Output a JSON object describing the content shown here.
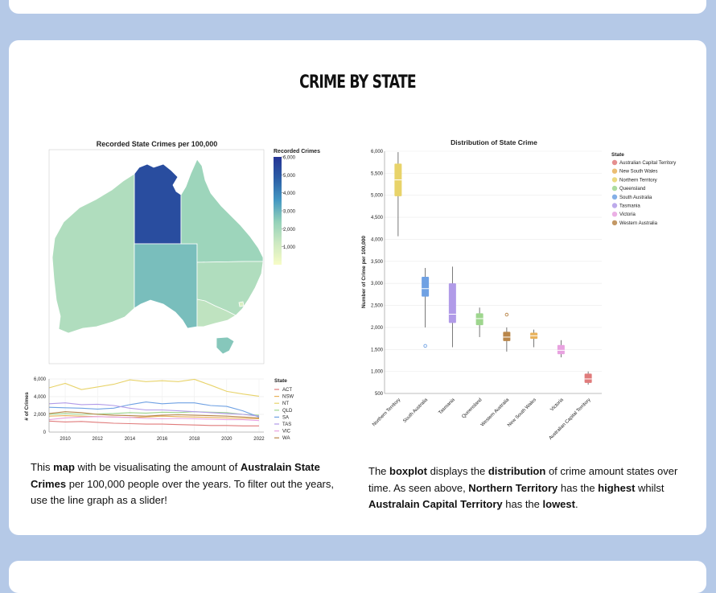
{
  "page": {
    "title": "CRIME BY STATE"
  },
  "map": {
    "title": "Recorded State Crimes per 100,000",
    "legend_title": "Recorded Crimes",
    "legend_ticks": [
      "6,000",
      "5,000",
      "4,000",
      "3,000",
      "2,000",
      "1,000"
    ],
    "color_scale": [
      "#f7fcc6",
      "#cde9c2",
      "#93d1b9",
      "#4497c2",
      "#2c5ea6",
      "#253494"
    ],
    "states": [
      {
        "name": "NT",
        "value": 5300
      },
      {
        "name": "WA",
        "value": 1800
      },
      {
        "name": "SA",
        "value": 2800
      },
      {
        "name": "QLD",
        "value": 2200
      },
      {
        "name": "NSW",
        "value": 1800
      },
      {
        "name": "VIC",
        "value": 1500
      },
      {
        "name": "TAS",
        "value": 2600
      },
      {
        "name": "ACT",
        "value": 850
      }
    ]
  },
  "chart_data": [
    {
      "type": "line",
      "title": "",
      "xlabel": "",
      "ylabel": "# of Crimes",
      "ylim": [
        0,
        6000
      ],
      "x_ticks": [
        "2010",
        "2012",
        "2014",
        "2016",
        "2018",
        "2020",
        "2022"
      ],
      "y_ticks": [
        "0",
        "2,000",
        "4,000",
        "6,000"
      ],
      "legend_title": "State",
      "x": [
        2009,
        2010,
        2011,
        2012,
        2013,
        2014,
        2015,
        2016,
        2017,
        2018,
        2019,
        2020,
        2021,
        2022
      ],
      "series": [
        {
          "name": "ACT",
          "color": "#e07b7b",
          "values": [
            1250,
            1150,
            1200,
            1100,
            1000,
            950,
            900,
            900,
            850,
            800,
            750,
            750,
            700,
            700
          ]
        },
        {
          "name": "NSW",
          "color": "#e8b15a",
          "values": [
            1800,
            1850,
            1800,
            1750,
            1700,
            1650,
            1700,
            1800,
            1750,
            1700,
            1650,
            1600,
            1550,
            1500
          ]
        },
        {
          "name": "NT",
          "color": "#e8d36a",
          "values": [
            5000,
            5500,
            4800,
            5100,
            5400,
            5900,
            5700,
            5800,
            5700,
            5950,
            5300,
            4600,
            4300,
            4050
          ]
        },
        {
          "name": "QLD",
          "color": "#9ed68e",
          "values": [
            2000,
            2100,
            2000,
            2050,
            2100,
            2200,
            2150,
            2250,
            2200,
            2300,
            2250,
            2200,
            2000,
            1900
          ]
        },
        {
          "name": "SA",
          "color": "#6fa1e3",
          "values": [
            2800,
            2750,
            2700,
            2600,
            2700,
            3100,
            3400,
            3200,
            3300,
            3300,
            3000,
            2900,
            2400,
            1700
          ]
        },
        {
          "name": "TAS",
          "color": "#b19be8",
          "values": [
            3200,
            3300,
            3100,
            3150,
            3000,
            2700,
            2500,
            2500,
            2400,
            2300,
            2200,
            2100,
            2000,
            1800
          ]
        },
        {
          "name": "VIC",
          "color": "#e8a2e0",
          "values": [
            1400,
            1600,
            1700,
            1750,
            1700,
            1650,
            1550,
            1500,
            1550,
            1500,
            1450,
            1400,
            1400,
            1300
          ]
        },
        {
          "name": "WA",
          "color": "#b9864a",
          "values": [
            2100,
            2300,
            2200,
            2000,
            1900,
            1850,
            1800,
            1900,
            1950,
            1900,
            1850,
            1800,
            1700,
            1600
          ]
        }
      ]
    },
    {
      "type": "boxplot",
      "title": "Distribution of State Crime",
      "xlabel": "",
      "ylabel": "Number of Crime per 100,000",
      "ylim": [
        500,
        6000
      ],
      "y_ticks": [
        "500",
        "1,000",
        "1,500",
        "2,000",
        "2,500",
        "3,000",
        "3,500",
        "4,000",
        "4,500",
        "5,000",
        "5,500",
        "6,000"
      ],
      "legend_title": "State",
      "categories": [
        "Northern Territory",
        "South Australia",
        "Tasmania",
        "Queensland",
        "Western Australia",
        "New South Wales",
        "Victoria",
        "Australian Capital Territory"
      ],
      "series": [
        {
          "name": "Northern Territory",
          "color": "#e8d36a",
          "min": 4070,
          "q1": 4980,
          "median": 5350,
          "q3": 5720,
          "max": 5980,
          "outliers": []
        },
        {
          "name": "South Australia",
          "color": "#6fa1e3",
          "min": 2000,
          "q1": 2700,
          "median": 2880,
          "q3": 3150,
          "max": 3350,
          "outliers": [
            1580
          ]
        },
        {
          "name": "Tasmania",
          "color": "#b19be8",
          "min": 1550,
          "q1": 2100,
          "median": 2300,
          "q3": 3000,
          "max": 3380,
          "outliers": []
        },
        {
          "name": "Queensland",
          "color": "#9ed68e",
          "min": 1780,
          "q1": 2050,
          "median": 2200,
          "q3": 2320,
          "max": 2450,
          "outliers": []
        },
        {
          "name": "Western Australia",
          "color": "#b9864a",
          "min": 1450,
          "q1": 1690,
          "median": 1780,
          "q3": 1900,
          "max": 2000,
          "outliers": [
            2290
          ]
        },
        {
          "name": "New South Wales",
          "color": "#e8b15a",
          "min": 1550,
          "q1": 1740,
          "median": 1810,
          "q3": 1880,
          "max": 1950,
          "outliers": []
        },
        {
          "name": "Victoria",
          "color": "#e8a2e0",
          "min": 1320,
          "q1": 1390,
          "median": 1480,
          "q3": 1600,
          "max": 1710,
          "outliers": []
        },
        {
          "name": "Australian Capital Territory",
          "color": "#e07b7b",
          "min": 700,
          "q1": 740,
          "median": 830,
          "q3": 950,
          "max": 1000,
          "outliers": []
        }
      ],
      "legend": [
        "Australian Capital Territory",
        "New South Wales",
        "Northern Territory",
        "Queensland",
        "South Australia",
        "Tasmania",
        "Victoria",
        "Western Australia"
      ]
    }
  ],
  "text": {
    "map_desc": {
      "p1": "This ",
      "b1": "map",
      "p2": " with be visualisating the amount of ",
      "b2": "Australain State Crimes",
      "p3": " per 100,000 people over the years. To filter out the years, use the line graph as a slider!"
    },
    "box_desc": {
      "p1": "The ",
      "b1": "boxplot",
      "p2": " displays the ",
      "b2": "distribution",
      "p3": " of crime amount states over time. As seen above, ",
      "b3": "Northern Territory",
      "p4": " has the ",
      "b4": "highest",
      "p5": " whilst ",
      "b5": "Australain Capital Territory",
      "p6": " has the ",
      "b6": "lowest",
      "p7": "."
    }
  }
}
